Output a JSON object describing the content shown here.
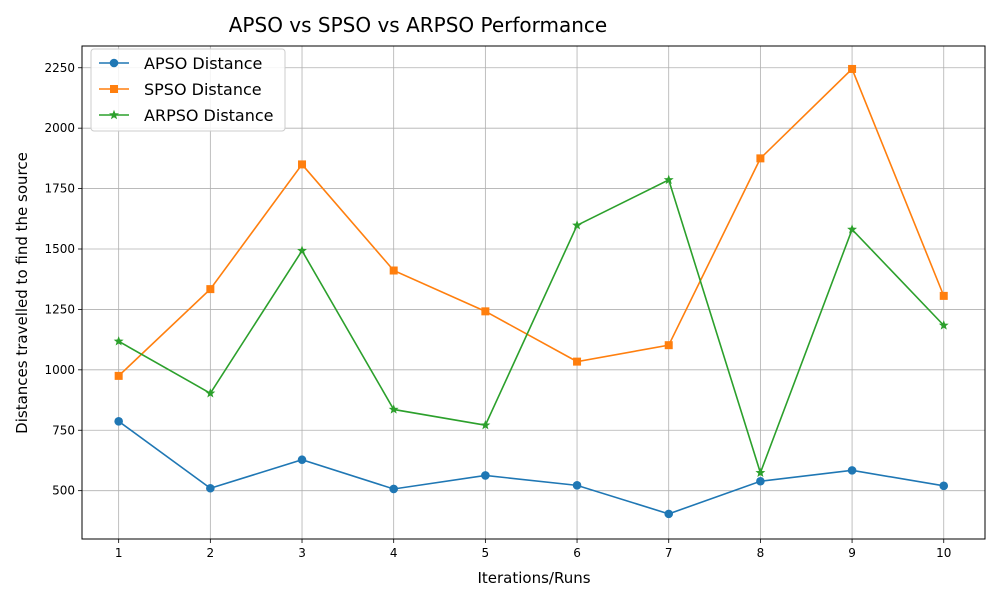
{
  "chart_data": {
    "type": "line",
    "title": "APSO vs SPSO vs ARPSO Performance",
    "xlabel": "Iterations/Runs",
    "ylabel": "Distances travelled to find the source",
    "x": [
      1,
      2,
      3,
      4,
      5,
      6,
      7,
      8,
      9,
      10
    ],
    "x_ticks": [
      "1",
      "2",
      "3",
      "4",
      "5",
      "6",
      "7",
      "8",
      "9",
      "10"
    ],
    "y_ticks": [
      "500",
      "750",
      "1000",
      "1250",
      "1500",
      "1750",
      "2000",
      "2250"
    ],
    "xlim": [
      0.6,
      10.45
    ],
    "ylim": [
      300,
      2340
    ],
    "grid": true,
    "legend_position": "top-left",
    "series": [
      {
        "name": "APSO Distance",
        "color": "#1f77b4",
        "marker": "circle",
        "values": [
          787,
          510,
          628,
          507,
          563,
          522,
          404,
          539,
          584,
          520
        ]
      },
      {
        "name": "SPSO Distance",
        "color": "#ff7f0e",
        "marker": "square",
        "values": [
          975,
          1334,
          1850,
          1411,
          1242,
          1034,
          1102,
          1875,
          2245,
          1306
        ]
      },
      {
        "name": "ARPSO Distance",
        "color": "#2ca02c",
        "marker": "star",
        "values": [
          1118,
          903,
          1493,
          836,
          771,
          1598,
          1786,
          574,
          1581,
          1184
        ]
      }
    ]
  }
}
